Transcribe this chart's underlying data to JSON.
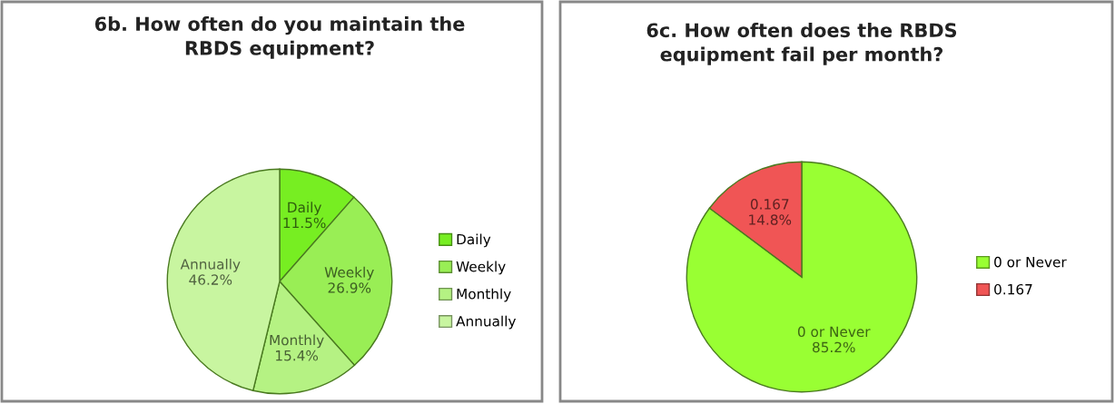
{
  "chart_data": [
    {
      "type": "pie",
      "title": "6b. How often do you maintain the\nRBDS equipment?",
      "categories": [
        "Daily",
        "Weekly",
        "Monthly",
        "Annually"
      ],
      "values": [
        11.5,
        26.9,
        15.4,
        46.2
      ],
      "value_labels": [
        "11.5%",
        "26.9%",
        "15.4%",
        "46.2%"
      ],
      "colors": [
        "#77ee22",
        "#99ee55",
        "#b5f283",
        "#c8f5a0"
      ],
      "legend": "right"
    },
    {
      "type": "pie",
      "title": "6c. How often does the RBDS\nequipment fail per month?",
      "categories": [
        "0 or Never",
        "0.167"
      ],
      "values": [
        85.2,
        14.8
      ],
      "value_labels": [
        "85.2%",
        "14.8%"
      ],
      "colors": [
        "#99ff33",
        "#f05555"
      ],
      "legend": "right"
    }
  ]
}
